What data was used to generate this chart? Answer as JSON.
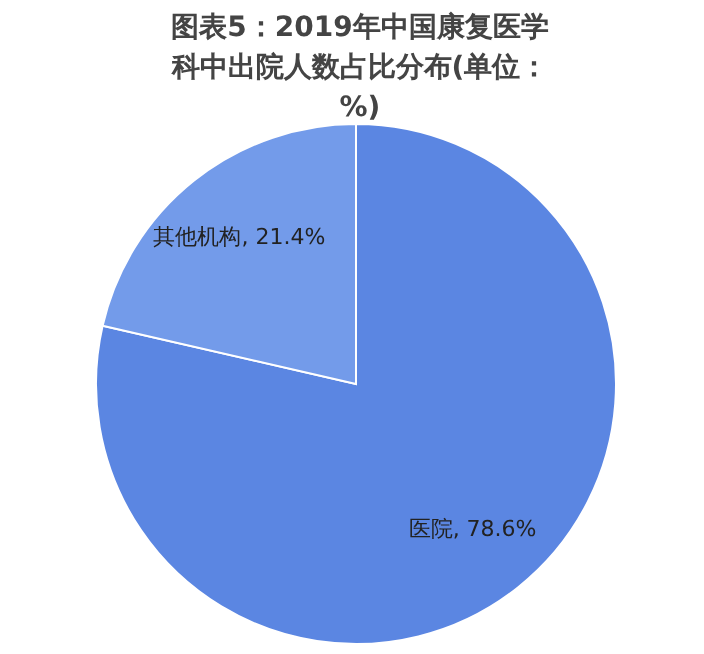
{
  "chart_data": {
    "type": "pie",
    "title": "图表5：2019年中国康复医学科中出院人数占比分布(单位：%)",
    "categories": [
      "医院",
      "其他机构"
    ],
    "values": [
      78.6,
      21.4
    ],
    "colors": [
      "#5b86e2",
      "#739bea"
    ],
    "value_labels": [
      "78.6%",
      "21.4%"
    ]
  }
}
